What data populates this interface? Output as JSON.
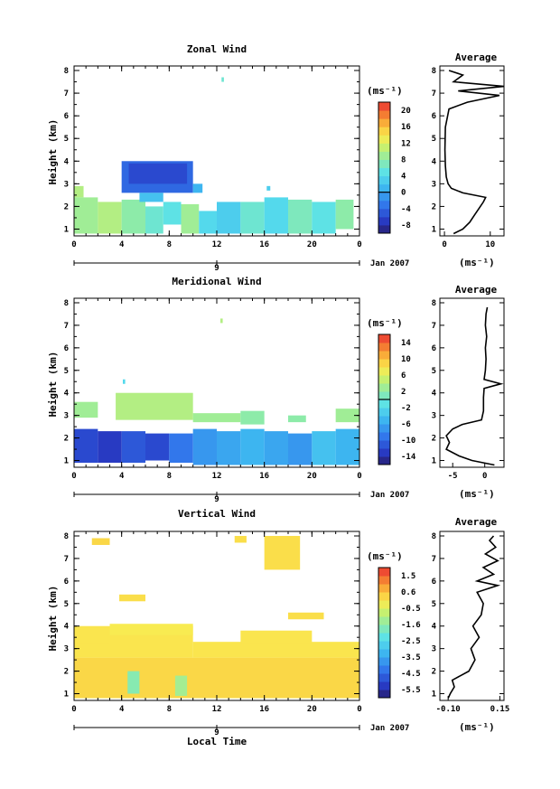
{
  "chart_data": [
    {
      "type": "heatmap",
      "title": "Zonal Wind",
      "ylabel": "Height (km)",
      "xlabel": "",
      "date_label": "Jan 2007",
      "day_label": "9",
      "x_ticks": [
        "0",
        "4",
        "8",
        "12",
        "16",
        "20",
        "0"
      ],
      "y_ticks": [
        "1",
        "2",
        "3",
        "4",
        "5",
        "6",
        "7",
        "8"
      ],
      "ylim": [
        0.7,
        8.2
      ],
      "xlim": [
        0,
        24
      ],
      "colorbar": {
        "unit": "(ms⁻¹)",
        "ticks": [
          "20",
          "16",
          "12",
          "8",
          "4",
          "0",
          "-4",
          "-8"
        ],
        "range": [
          -10,
          22
        ],
        "zero_line": 0
      },
      "cells": [
        {
          "x0": 0,
          "x1": 0.8,
          "y0": 2.4,
          "y1": 2.9,
          "v": 10
        },
        {
          "x0": 0,
          "x1": 2,
          "y0": 0.8,
          "y1": 2.4,
          "v": 9
        },
        {
          "x0": 2,
          "x1": 4,
          "y0": 0.8,
          "y1": 2.2,
          "v": 10
        },
        {
          "x0": 4,
          "x1": 6,
          "y0": 0.8,
          "y1": 2.3,
          "v": 8
        },
        {
          "x0": 6,
          "x1": 7.5,
          "y0": 0.8,
          "y1": 2.0,
          "v": 6
        },
        {
          "x0": 7.5,
          "x1": 9,
          "y0": 1.2,
          "y1": 2.2,
          "v": 5
        },
        {
          "x0": 9,
          "x1": 10.5,
          "y0": 0.8,
          "y1": 2.1,
          "v": 9
        },
        {
          "x0": 10.5,
          "x1": 12,
          "y0": 0.8,
          "y1": 1.8,
          "v": 4
        },
        {
          "x0": 12,
          "x1": 14,
          "y0": 0.8,
          "y1": 2.2,
          "v": 3
        },
        {
          "x0": 14,
          "x1": 16,
          "y0": 0.8,
          "y1": 2.2,
          "v": 6
        },
        {
          "x0": 16,
          "x1": 18,
          "y0": 0.8,
          "y1": 2.4,
          "v": 4
        },
        {
          "x0": 18,
          "x1": 20,
          "y0": 0.8,
          "y1": 2.3,
          "v": 7
        },
        {
          "x0": 20,
          "x1": 22,
          "y0": 0.8,
          "y1": 2.2,
          "v": 5
        },
        {
          "x0": 22,
          "x1": 23.5,
          "y0": 1.0,
          "y1": 2.3,
          "v": 8
        },
        {
          "x0": 4.0,
          "x1": 10,
          "y0": 2.6,
          "y1": 4.0,
          "v": -4
        },
        {
          "x0": 4.6,
          "x1": 9.5,
          "y0": 3.0,
          "y1": 3.9,
          "v": -6
        },
        {
          "x0": 5.5,
          "x1": 7.5,
          "y0": 2.2,
          "y1": 2.6,
          "v": 2
        },
        {
          "x0": 10.0,
          "x1": 10.8,
          "y0": 2.6,
          "y1": 3.0,
          "v": 1
        },
        {
          "x0": 16.2,
          "x1": 16.5,
          "y0": 2.7,
          "y1": 2.9,
          "v": 3
        },
        {
          "x0": 12.4,
          "x1": 12.6,
          "y0": 7.5,
          "y1": 7.7,
          "v": 6
        }
      ],
      "average": {
        "title": "Average",
        "unit": "(ms⁻¹)",
        "x_ticks": [
          "0",
          "10"
        ],
        "xlim": [
          -1,
          13
        ],
        "heights": [
          0.8,
          1.0,
          1.3,
          1.6,
          1.9,
          2.2,
          2.4,
          2.6,
          2.8,
          3.0,
          3.3,
          3.8,
          4.5,
          5.5,
          6.3,
          6.6,
          6.9,
          7.1,
          7.3,
          7.5,
          7.8,
          8.0
        ],
        "values": [
          2.0,
          4.0,
          5.5,
          6.5,
          7.5,
          8.5,
          9.0,
          4.0,
          1.5,
          0.8,
          0.4,
          0.2,
          0.1,
          0.2,
          1.0,
          5.0,
          12.0,
          3.0,
          13.0,
          2.0,
          4.0,
          1.0
        ]
      }
    },
    {
      "type": "heatmap",
      "title": "Meridional Wind",
      "ylabel": "Height (km)",
      "xlabel": "",
      "date_label": "Jan 2007",
      "day_label": "9",
      "x_ticks": [
        "0",
        "4",
        "8",
        "12",
        "16",
        "20",
        "0"
      ],
      "y_ticks": [
        "1",
        "2",
        "3",
        "4",
        "5",
        "6",
        "7",
        "8"
      ],
      "ylim": [
        0.7,
        8.2
      ],
      "xlim": [
        0,
        24
      ],
      "colorbar": {
        "unit": "(ms⁻¹)",
        "ticks": [
          "14",
          "10",
          "6",
          "2",
          "-2",
          "-6",
          "-10",
          "-14"
        ],
        "range": [
          -16,
          16
        ],
        "zero_line": 0
      },
      "cells": [
        {
          "x0": 0,
          "x1": 2,
          "y0": 0.9,
          "y1": 2.4,
          "v": -12
        },
        {
          "x0": 2,
          "x1": 4,
          "y0": 0.9,
          "y1": 2.3,
          "v": -13
        },
        {
          "x0": 4,
          "x1": 6,
          "y0": 0.9,
          "y1": 2.3,
          "v": -11
        },
        {
          "x0": 6,
          "x1": 8,
          "y0": 1.0,
          "y1": 2.2,
          "v": -12
        },
        {
          "x0": 8,
          "x1": 10,
          "y0": 0.9,
          "y1": 2.2,
          "v": -9
        },
        {
          "x0": 10,
          "x1": 12,
          "y0": 0.8,
          "y1": 2.4,
          "v": -7
        },
        {
          "x0": 12,
          "x1": 14,
          "y0": 0.8,
          "y1": 2.3,
          "v": -6
        },
        {
          "x0": 14,
          "x1": 16,
          "y0": 0.8,
          "y1": 2.4,
          "v": -5
        },
        {
          "x0": 16,
          "x1": 18,
          "y0": 0.8,
          "y1": 2.3,
          "v": -6
        },
        {
          "x0": 18,
          "x1": 20,
          "y0": 0.8,
          "y1": 2.2,
          "v": -7
        },
        {
          "x0": 20,
          "x1": 22,
          "y0": 0.8,
          "y1": 2.3,
          "v": -4
        },
        {
          "x0": 22,
          "x1": 24,
          "y0": 0.8,
          "y1": 2.4,
          "v": -5
        },
        {
          "x0": 0,
          "x1": 2,
          "y0": 2.9,
          "y1": 3.6,
          "v": 3
        },
        {
          "x0": 3.5,
          "x1": 10,
          "y0": 2.8,
          "y1": 4.0,
          "v": 4
        },
        {
          "x0": 10,
          "x1": 14,
          "y0": 2.7,
          "y1": 3.1,
          "v": 3
        },
        {
          "x0": 14,
          "x1": 16,
          "y0": 2.6,
          "y1": 3.2,
          "v": 2
        },
        {
          "x0": 18,
          "x1": 19.5,
          "y0": 2.7,
          "y1": 3.0,
          "v": 2
        },
        {
          "x0": 22,
          "x1": 24,
          "y0": 2.7,
          "y1": 3.3,
          "v": 3
        },
        {
          "x0": 12.3,
          "x1": 12.5,
          "y0": 7.1,
          "y1": 7.3,
          "v": 4
        },
        {
          "x0": 4.1,
          "x1": 4.3,
          "y0": 4.4,
          "y1": 4.6,
          "v": -2
        }
      ],
      "average": {
        "title": "Average",
        "unit": "(ms⁻¹)",
        "x_ticks": [
          "-5",
          "0"
        ],
        "xlim": [
          -7,
          3
        ],
        "heights": [
          0.8,
          1.0,
          1.2,
          1.5,
          1.8,
          2.1,
          2.4,
          2.6,
          2.8,
          3.2,
          3.8,
          4.2,
          4.4,
          4.6,
          5.0,
          5.5,
          6.0,
          6.5,
          7.0,
          7.5,
          7.8
        ],
        "values": [
          1.5,
          -2.0,
          -4.0,
          -6.0,
          -5.5,
          -6.0,
          -5.0,
          -3.5,
          -0.5,
          -0.2,
          -0.2,
          -0.1,
          2.5,
          -0.1,
          0.1,
          0.2,
          0.1,
          0.3,
          0.1,
          0.2,
          0.4
        ]
      }
    },
    {
      "type": "heatmap",
      "title": "Vertical Wind",
      "ylabel": "Height (km)",
      "xlabel": "Local Time",
      "date_label": "Jan 2007",
      "day_label": "9",
      "x_ticks": [
        "0",
        "4",
        "8",
        "12",
        "16",
        "20",
        "0"
      ],
      "y_ticks": [
        "1",
        "2",
        "3",
        "4",
        "5",
        "6",
        "7",
        "8"
      ],
      "ylim": [
        0.7,
        8.2
      ],
      "xlim": [
        0,
        24
      ],
      "colorbar": {
        "unit": "(ms⁻¹)",
        "ticks": [
          "1.5",
          "0.6",
          "-0.5",
          "-1.6",
          "-2.5",
          "-3.5",
          "-4.5",
          "-5.5"
        ],
        "range": [
          -6,
          2
        ],
        "zero_line": null
      },
      "cells": [
        {
          "x0": 0,
          "x1": 24,
          "y0": 0.8,
          "y1": 2.6,
          "v": 0.2
        },
        {
          "x0": 0,
          "x1": 10,
          "y0": 2.6,
          "y1": 4.0,
          "v": 0.0
        },
        {
          "x0": 0,
          "x1": 3,
          "y0": 3.2,
          "y1": 3.6,
          "v": 0.0
        },
        {
          "x0": 10,
          "x1": 24,
          "y0": 2.6,
          "y1": 3.3,
          "v": 0.0
        },
        {
          "x0": 14,
          "x1": 20,
          "y0": 3.2,
          "y1": 3.8,
          "v": 0.0
        },
        {
          "x0": 3,
          "x1": 10,
          "y0": 3.6,
          "y1": 4.1,
          "v": -0.1
        },
        {
          "x0": 4.5,
          "x1": 5.5,
          "y0": 1.0,
          "y1": 2.0,
          "v": -1.6
        },
        {
          "x0": 8.5,
          "x1": 9.5,
          "y0": 0.9,
          "y1": 1.8,
          "v": -1.2
        },
        {
          "x0": 16,
          "x1": 19,
          "y0": 6.5,
          "y1": 8.0,
          "v": 0.1
        },
        {
          "x0": 13.5,
          "x1": 14.5,
          "y0": 7.7,
          "y1": 8.0,
          "v": 0.1
        },
        {
          "x0": 1.5,
          "x1": 3,
          "y0": 7.6,
          "y1": 7.9,
          "v": 0.2
        },
        {
          "x0": 3.8,
          "x1": 6,
          "y0": 5.1,
          "y1": 5.4,
          "v": 0.1
        },
        {
          "x0": 18,
          "x1": 21,
          "y0": 4.3,
          "y1": 4.6,
          "v": 0.1
        }
      ],
      "average": {
        "title": "Average",
        "unit": "(ms⁻¹)",
        "x_ticks": [
          "-0.10",
          "0.15"
        ],
        "xlim": [
          -0.14,
          0.17
        ],
        "heights": [
          0.8,
          1.0,
          1.3,
          1.6,
          2.0,
          2.5,
          3.0,
          3.5,
          4.0,
          4.5,
          5.0,
          5.5,
          5.8,
          6.0,
          6.3,
          6.6,
          6.9,
          7.2,
          7.5,
          7.8,
          8.0
        ],
        "values": [
          -0.1,
          -0.09,
          -0.07,
          -0.08,
          0.0,
          0.03,
          0.01,
          0.05,
          0.02,
          0.06,
          0.07,
          0.04,
          0.14,
          0.04,
          0.12,
          0.07,
          0.14,
          0.08,
          0.13,
          0.1,
          0.12
        ]
      }
    }
  ]
}
